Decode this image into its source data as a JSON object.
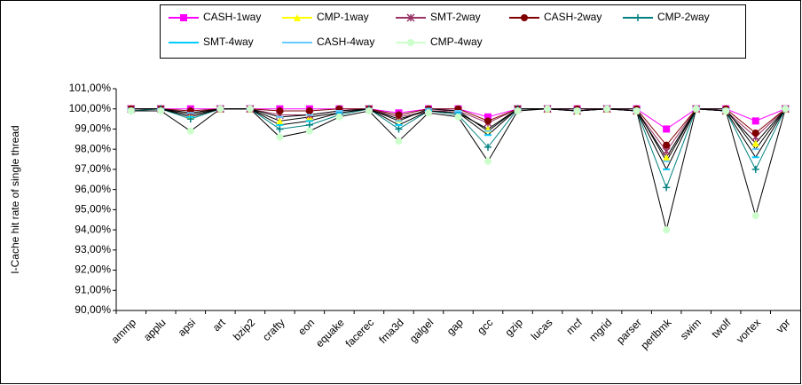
{
  "chart_data": {
    "type": "line",
    "y_label": "I-Cache hit rate of single thread",
    "categories": [
      "ammp",
      "applu",
      "apsi",
      "art",
      "bzip2",
      "crafty",
      "eon",
      "equake",
      "facerec",
      "fma3d",
      "galgel",
      "gap",
      "gcc",
      "gzip",
      "lucas",
      "mcf",
      "mgrid",
      "parser",
      "perlbmk",
      "swim",
      "twolf",
      "vortex",
      "vpr"
    ],
    "series": [
      {
        "name": "CASH-1way",
        "color": "#ff00ff",
        "marker": "square",
        "values": [
          100,
          100,
          100,
          100,
          100,
          100,
          100,
          100,
          100,
          99.8,
          100,
          100,
          99.6,
          100,
          100,
          100,
          100,
          100,
          99.0,
          100,
          100,
          99.4,
          100
        ]
      },
      {
        "name": "CMP-1way",
        "color": "#ffff00",
        "marker": "triangle",
        "values": [
          100,
          100,
          99.7,
          100,
          100,
          99.4,
          99.6,
          99.8,
          100,
          99.5,
          99.9,
          99.8,
          99.0,
          100,
          100,
          99.9,
          100,
          99.9,
          97.6,
          100,
          99.9,
          98.3,
          100
        ]
      },
      {
        "name": "SMT-2way",
        "color": "#993366",
        "marker": "star",
        "values": [
          100,
          100,
          99.8,
          100,
          100,
          99.7,
          99.7,
          99.9,
          100,
          99.6,
          99.9,
          99.9,
          99.3,
          100,
          100,
          99.9,
          100,
          99.9,
          97.9,
          100,
          99.9,
          98.6,
          100
        ]
      },
      {
        "name": "CASH-2way",
        "color": "#800000",
        "marker": "circle",
        "values": [
          100,
          100,
          99.9,
          100,
          100,
          99.9,
          99.9,
          100,
          100,
          99.7,
          100,
          100,
          99.4,
          100,
          100,
          100,
          100,
          100,
          98.2,
          100,
          100,
          98.8,
          100
        ]
      },
      {
        "name": "CMP-2way",
        "color": "#008080",
        "marker": "plus",
        "values": [
          99.9,
          100,
          99.5,
          100,
          100,
          99.0,
          99.2,
          99.7,
          100,
          99.0,
          99.9,
          99.7,
          98.1,
          100,
          100,
          99.9,
          100,
          99.9,
          96.1,
          100,
          99.9,
          97.0,
          100
        ]
      },
      {
        "name": "SMT-4way",
        "color": "#00ccff",
        "marker": "dash",
        "values": [
          100,
          100,
          99.6,
          100,
          100,
          99.2,
          99.4,
          99.8,
          100,
          99.2,
          99.9,
          99.8,
          98.7,
          100,
          100,
          99.9,
          100,
          99.9,
          97.0,
          100,
          99.9,
          97.6,
          100
        ]
      },
      {
        "name": "CASH-4way",
        "color": "#66ccff",
        "marker": "dash",
        "values": [
          100,
          100,
          99.8,
          100,
          100,
          99.6,
          99.7,
          99.9,
          100,
          99.4,
          100,
          99.9,
          98.9,
          100,
          100,
          100,
          100,
          100,
          97.4,
          100,
          100,
          98.0,
          100
        ]
      },
      {
        "name": "CMP-4way",
        "color": "#ccffcc",
        "marker": "circle",
        "values": [
          99.9,
          99.9,
          98.9,
          100,
          100,
          98.6,
          98.9,
          99.6,
          99.9,
          98.4,
          99.8,
          99.6,
          97.4,
          99.9,
          100,
          99.9,
          100,
          99.9,
          94.0,
          100,
          99.9,
          94.7,
          100
        ]
      }
    ],
    "ylim": [
      90,
      101
    ],
    "yticks": [
      {
        "value": 90,
        "label": "90,00%"
      },
      {
        "value": 91,
        "label": "91,00%"
      },
      {
        "value": 92,
        "label": "92,00%"
      },
      {
        "value": 93,
        "label": "93,00%"
      },
      {
        "value": 94,
        "label": "94,00%"
      },
      {
        "value": 95,
        "label": "95,00%"
      },
      {
        "value": 96,
        "label": "96,00%"
      },
      {
        "value": 97,
        "label": "97,00%"
      },
      {
        "value": 98,
        "label": "98,00%"
      },
      {
        "value": 99,
        "label": "99,00%"
      },
      {
        "value": 100,
        "label": "100,00%"
      },
      {
        "value": 101,
        "label": "101,00%"
      }
    ],
    "grid": false,
    "legend": "top"
  }
}
